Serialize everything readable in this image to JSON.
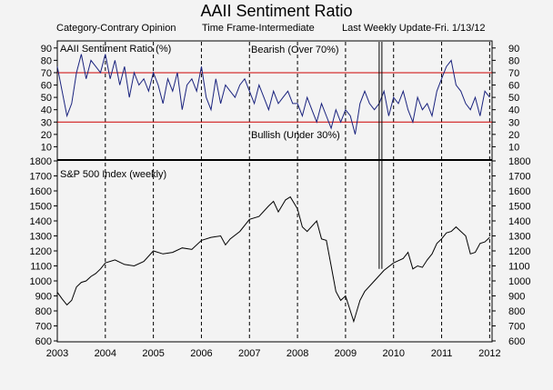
{
  "title": "AAII Sentiment Ratio",
  "header": {
    "category": "Category-Contrary Opinion",
    "timeframe": "Time Frame-Intermediate",
    "update": "Last Weekly Update-Fri. 1/13/12"
  },
  "colors": {
    "background": "#f3f3f3",
    "sentiment_line": "#1a237e",
    "sp500_line": "#000000",
    "threshold": "#cc0000",
    "grid": "#000000"
  },
  "chart_data": [
    {
      "type": "line",
      "title": "AAII Sentiment Ratio (%)",
      "ylim": [
        0,
        95
      ],
      "yticks": [
        10,
        20,
        30,
        40,
        50,
        60,
        70,
        80,
        90
      ],
      "xlim": [
        2003.0,
        2012.05
      ],
      "grid": "vertical dashed at year boundaries",
      "annotations": [
        {
          "text": "Bearish (Over 70%)",
          "y": 70
        },
        {
          "text": "Bullish (Under 30%)",
          "y": 30
        }
      ],
      "thresholds": [
        70,
        30
      ],
      "series": [
        {
          "x": [
            2003.0,
            2003.1,
            2003.2,
            2003.3,
            2003.4,
            2003.5,
            2003.6,
            2003.7,
            2003.8,
            2003.9,
            2004.0,
            2004.1,
            2004.2,
            2004.3,
            2004.4,
            2004.5,
            2004.6,
            2004.7,
            2004.8,
            2004.9,
            2005.0,
            2005.1,
            2005.2,
            2005.3,
            2005.4,
            2005.5,
            2005.6,
            2005.7,
            2005.8,
            2005.9,
            2006.0,
            2006.1,
            2006.2,
            2006.3,
            2006.4,
            2006.5,
            2006.6,
            2006.7,
            2006.8,
            2006.9,
            2007.0,
            2007.1,
            2007.2,
            2007.3,
            2007.4,
            2007.5,
            2007.6,
            2007.7,
            2007.8,
            2007.9,
            2008.0,
            2008.1,
            2008.2,
            2008.3,
            2008.4,
            2008.5,
            2008.6,
            2008.7,
            2008.8,
            2008.9,
            2009.0,
            2009.1,
            2009.2,
            2009.3,
            2009.4,
            2009.5,
            2009.6,
            2009.7,
            2009.8,
            2009.9,
            2010.0,
            2010.1,
            2010.2,
            2010.3,
            2010.4,
            2010.5,
            2010.6,
            2010.7,
            2010.8,
            2010.9,
            2011.0,
            2011.1,
            2011.2,
            2011.3,
            2011.4,
            2011.5,
            2011.6,
            2011.7,
            2011.8,
            2011.9,
            2012.0
          ],
          "values": [
            75,
            55,
            35,
            45,
            70,
            85,
            65,
            80,
            75,
            70,
            85,
            65,
            80,
            60,
            75,
            50,
            70,
            60,
            65,
            55,
            70,
            60,
            45,
            65,
            55,
            70,
            40,
            60,
            65,
            55,
            75,
            50,
            40,
            65,
            45,
            60,
            55,
            50,
            60,
            65,
            55,
            45,
            60,
            50,
            40,
            55,
            45,
            50,
            55,
            45,
            45,
            35,
            50,
            40,
            30,
            45,
            35,
            25,
            40,
            30,
            40,
            35,
            20,
            45,
            55,
            45,
            40,
            45,
            55,
            35,
            50,
            45,
            55,
            40,
            30,
            50,
            40,
            45,
            35,
            55,
            65,
            75,
            80,
            60,
            55,
            45,
            40,
            50,
            35,
            55,
            50
          ]
        }
      ]
    },
    {
      "type": "line",
      "title": "S&P 500 Index (weekly)",
      "ylim": [
        600,
        1800
      ],
      "yticks": [
        600,
        700,
        800,
        900,
        1000,
        1100,
        1200,
        1300,
        1400,
        1500,
        1600,
        1700,
        1800
      ],
      "xlim": [
        2003.0,
        2012.05
      ],
      "xticks": [
        "2003",
        "2004",
        "2005",
        "2006",
        "2007",
        "2008",
        "2009",
        "2010",
        "2011",
        "2012"
      ],
      "series": [
        {
          "x": [
            2003.0,
            2003.1,
            2003.2,
            2003.3,
            2003.4,
            2003.5,
            2003.6,
            2003.7,
            2003.8,
            2003.9,
            2004.0,
            2004.2,
            2004.4,
            2004.6,
            2004.8,
            2005.0,
            2005.2,
            2005.4,
            2005.6,
            2005.8,
            2006.0,
            2006.2,
            2006.4,
            2006.5,
            2006.6,
            2006.8,
            2007.0,
            2007.2,
            2007.4,
            2007.5,
            2007.6,
            2007.75,
            2007.85,
            2008.0,
            2008.1,
            2008.2,
            2008.4,
            2008.5,
            2008.6,
            2008.7,
            2008.8,
            2008.9,
            2009.0,
            2009.1,
            2009.17,
            2009.3,
            2009.4,
            2009.6,
            2009.8,
            2010.0,
            2010.2,
            2010.3,
            2010.4,
            2010.5,
            2010.6,
            2010.7,
            2010.8,
            2010.9,
            2011.0,
            2011.1,
            2011.2,
            2011.3,
            2011.4,
            2011.5,
            2011.6,
            2011.7,
            2011.8,
            2011.9,
            2012.0
          ],
          "values": [
            925,
            880,
            840,
            870,
            960,
            990,
            1000,
            1030,
            1050,
            1080,
            1120,
            1140,
            1110,
            1100,
            1130,
            1200,
            1180,
            1190,
            1220,
            1210,
            1270,
            1290,
            1300,
            1240,
            1280,
            1330,
            1410,
            1430,
            1500,
            1530,
            1460,
            1540,
            1560,
            1480,
            1360,
            1330,
            1400,
            1280,
            1270,
            1100,
            930,
            870,
            900,
            800,
            730,
            870,
            930,
            1000,
            1070,
            1120,
            1150,
            1190,
            1080,
            1100,
            1090,
            1140,
            1180,
            1250,
            1280,
            1320,
            1330,
            1360,
            1330,
            1300,
            1180,
            1190,
            1250,
            1260,
            1290
          ]
        }
      ],
      "marker_line_x": 2009.7
    }
  ]
}
